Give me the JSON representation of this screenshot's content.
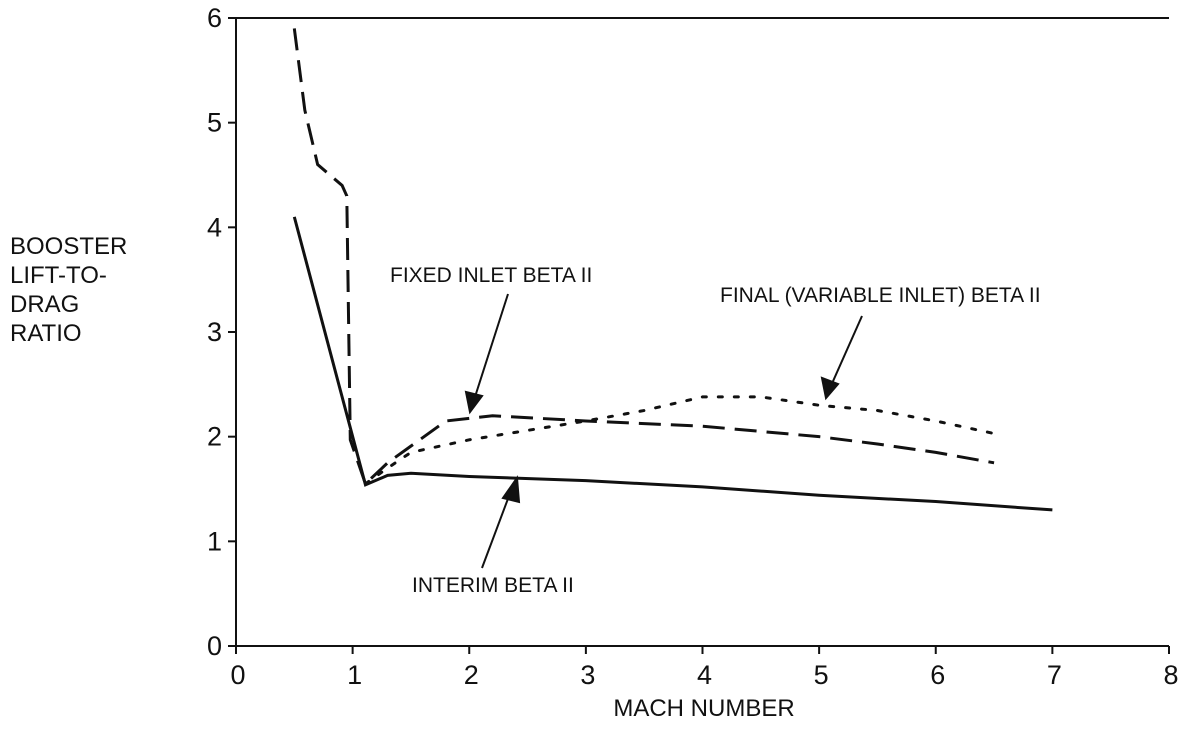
{
  "chart_data": {
    "type": "line",
    "xlabel": "MACH NUMBER",
    "ylabel": [
      "BOOSTER",
      "LIFT-TO-",
      "DRAG",
      "RATIO"
    ],
    "xlim": [
      0,
      8
    ],
    "ylim": [
      0,
      6
    ],
    "xticks": [
      0,
      1,
      2,
      3,
      4,
      5,
      6,
      7,
      8
    ],
    "yticks": [
      0,
      1,
      2,
      3,
      4,
      5,
      6
    ],
    "grid": false,
    "series": [
      {
        "name": "INTERIM BETA II",
        "color": "#111111",
        "dash": "solid",
        "x": [
          0.5,
          1.11,
          1.3,
          1.5,
          2,
          3,
          4,
          5,
          6,
          7
        ],
        "values": [
          4.1,
          1.54,
          1.63,
          1.65,
          1.62,
          1.58,
          1.52,
          1.44,
          1.38,
          1.3
        ]
      },
      {
        "name": "FIXED INLET BETA II",
        "color": "#111111",
        "dash": "dashed",
        "x": [
          0.5,
          0.59,
          0.7,
          0.91,
          0.95,
          0.98,
          1.11,
          1.3,
          1.8,
          2.2,
          3,
          4,
          5,
          5.5,
          6,
          6.5
        ],
        "values": [
          5.9,
          5.12,
          4.6,
          4.4,
          4.3,
          1.97,
          1.55,
          1.75,
          2.15,
          2.2,
          2.15,
          2.1,
          2.0,
          1.93,
          1.85,
          1.75
        ]
      },
      {
        "name": "FINAL (VARIABLE INLET) BETA II",
        "color": "#111111",
        "dash": "dotted",
        "x": [
          1.11,
          1.3,
          1.5,
          2,
          3,
          3.5,
          4,
          4.5,
          5,
          5.5,
          6,
          6.5
        ],
        "values": [
          1.55,
          1.7,
          1.85,
          1.97,
          2.15,
          2.25,
          2.38,
          2.38,
          2.3,
          2.25,
          2.15,
          2.03
        ]
      }
    ]
  }
}
